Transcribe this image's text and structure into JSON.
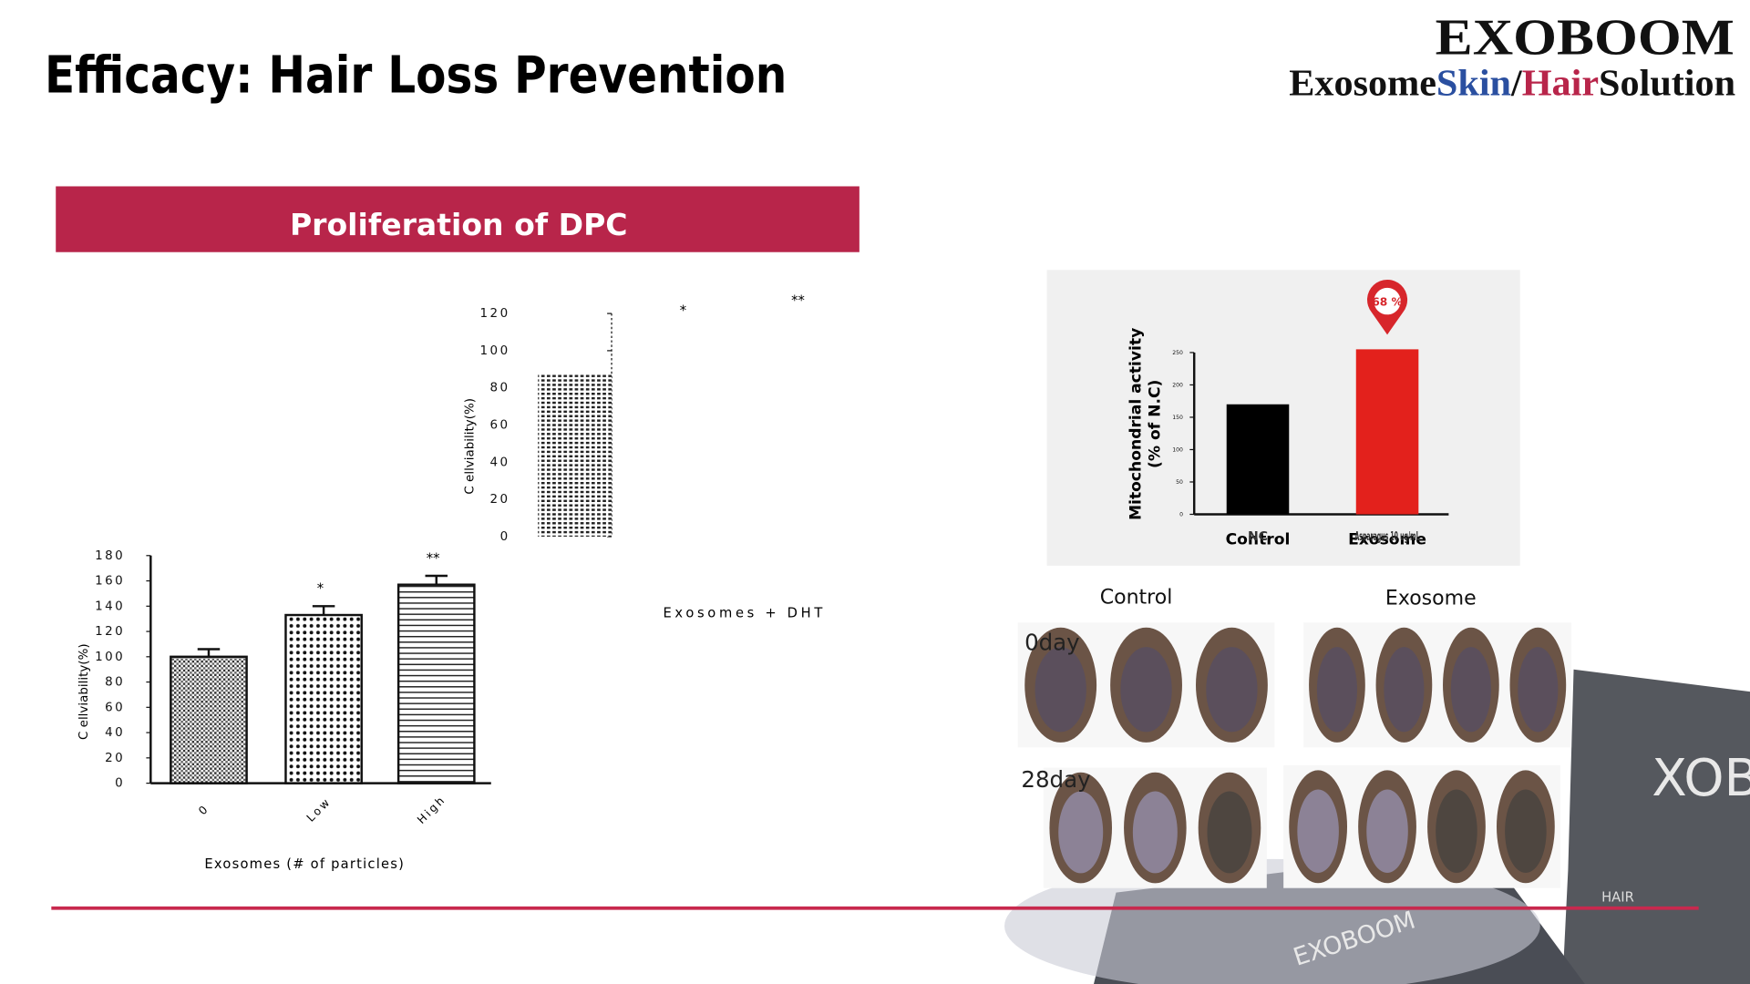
{
  "title": "Efficacy: Hair Loss Prevention",
  "logo": {
    "brand": "EXOBOOM",
    "tagline": [
      {
        "text": "Exosome",
        "color": "#111111"
      },
      {
        "text": "Skin",
        "color": "#2a4fa0"
      },
      {
        "text": "/",
        "color": "#111111"
      },
      {
        "text": "Hair",
        "color": "#b8254a"
      },
      {
        "text": "Solution",
        "color": "#111111"
      }
    ]
  },
  "banner": "Proliferation of DPC",
  "photos": {
    "columns": [
      "Control",
      "Exosome"
    ],
    "rows": [
      "0day",
      "28day"
    ]
  },
  "chart_data": [
    {
      "type": "bar",
      "categories": [
        "0",
        "Low",
        "High"
      ],
      "values": [
        100,
        133,
        157
      ],
      "errors": [
        6,
        7,
        7
      ],
      "color": "#111111",
      "ylim": [
        0,
        180
      ],
      "yticks": [
        0,
        20,
        40,
        60,
        80,
        100,
        120,
        140,
        160,
        180
      ],
      "y_label": "C ellviability(%)",
      "x_label": "Exosomes (# of particles)",
      "annotations": [
        "*",
        "**"
      ]
    },
    {
      "type": "bar",
      "categories": [
        null
      ],
      "values": [
        87
      ],
      "color": "#222222",
      "ylim": [
        0,
        120
      ],
      "yticks": [
        0,
        20,
        40,
        60,
        80,
        100,
        120
      ],
      "y_label": "C ellviability(%)",
      "x_label": "Exosomes + DHT",
      "annotations": [
        "*",
        "**"
      ]
    },
    {
      "type": "bar",
      "categories": [
        "Control",
        "Exosome"
      ],
      "sublabels": [
        "NC",
        "Asparagus 10 ug/mL"
      ],
      "values": [
        170,
        255
      ],
      "colors": [
        "#000000",
        "#e3211c"
      ],
      "ylim": [
        0,
        250
      ],
      "yticks": [
        0,
        50,
        100,
        150,
        200,
        250
      ],
      "y_label": [
        "Mitochondrial activity",
        "(% of N.C)"
      ],
      "annotations": [
        "68 %"
      ]
    }
  ]
}
